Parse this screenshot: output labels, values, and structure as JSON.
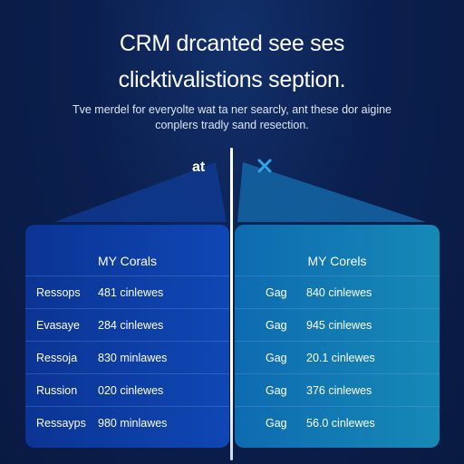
{
  "headline": {
    "line1": "CRM drcanted see ses",
    "line2": "clicktivalistions seption."
  },
  "subtext": {
    "line1": "Tve merdel for everyolte wat ta ner searcly, ant these dor aigine",
    "line2": "conplers tradly sand resection."
  },
  "icons": {
    "left_label": "at",
    "left_icon": "at-text-icon",
    "right_icon": "close-x-icon",
    "accent": "#2aa7e8"
  },
  "left_panel": {
    "title": "MY Corals",
    "rows": [
      {
        "name": "Ressops",
        "value": "481 cinlewes"
      },
      {
        "name": "Evasaye",
        "value": "284 cinlewes"
      },
      {
        "name": "Ressoja",
        "value": "830 minlawes"
      },
      {
        "name": "Russion",
        "value": "020 cinlewes"
      },
      {
        "name": "Ressayps",
        "value": "980 minlawes"
      }
    ]
  },
  "right_panel": {
    "title": "MY Corels",
    "rows": [
      {
        "name": "Gag",
        "value": "840 cinlewes"
      },
      {
        "name": "Gag",
        "value": "945 cinlewes"
      },
      {
        "name": "Gag",
        "value": "20.1 cinlewes"
      },
      {
        "name": "Gag",
        "value": "376 cinlewes"
      },
      {
        "name": "Gag",
        "value": "56.0 cinlewes"
      }
    ]
  }
}
